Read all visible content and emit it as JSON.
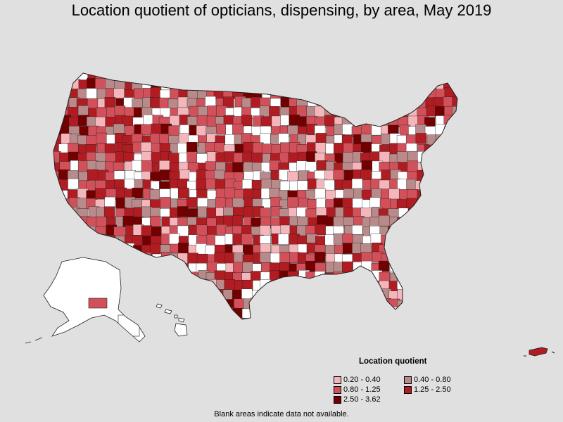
{
  "title": "Location quotient of opticians, dispensing, by area, May 2019",
  "legend": {
    "title": "Location quotient",
    "items": [
      {
        "label": "0.20 - 0.40",
        "color": "#f4b6bb"
      },
      {
        "label": "0.40 - 0.80",
        "color": "#b98a8a"
      },
      {
        "label": "0.80 - 1.25",
        "color": "#d2505a"
      },
      {
        "label": "1.25 - 2.50",
        "color": "#b01c22"
      },
      {
        "label": "2.50 - 3.62",
        "color": "#730000"
      }
    ]
  },
  "note": "Blank areas indicate data not available.",
  "colors": {
    "background": "#e0e0e0",
    "no_data": "#ffffff",
    "border": "#222222"
  }
}
